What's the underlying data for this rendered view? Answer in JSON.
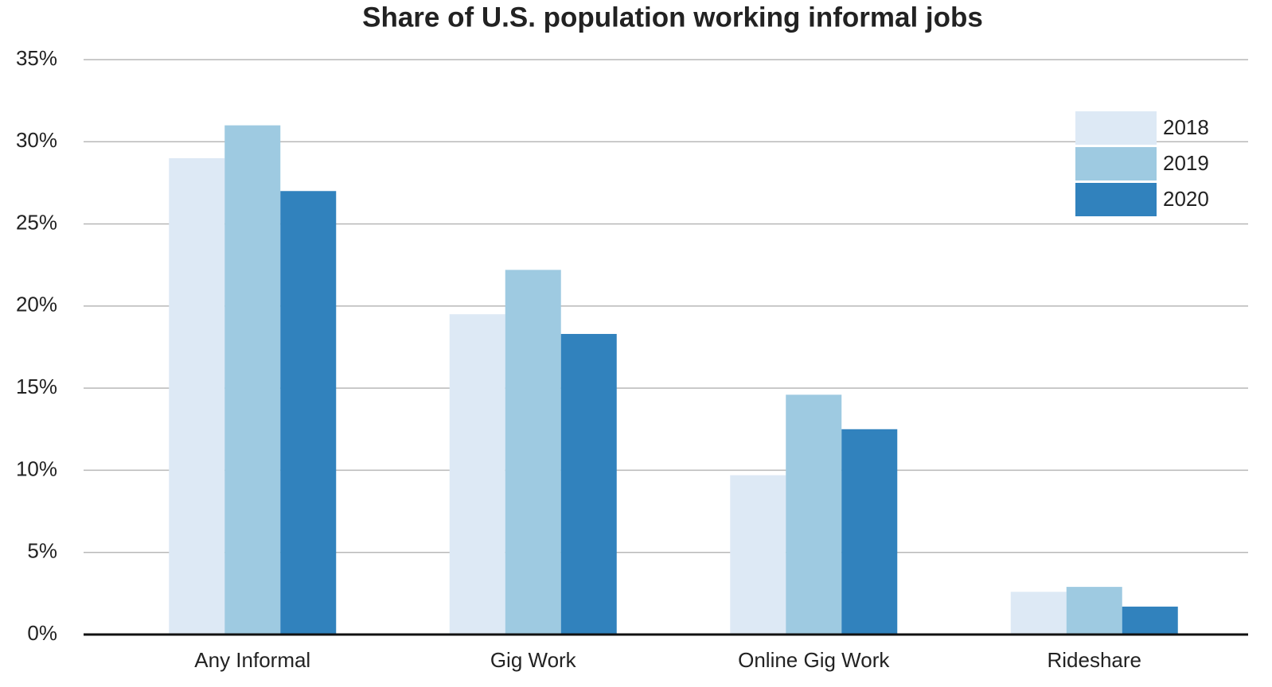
{
  "chart_data": {
    "type": "bar",
    "title": "Share of U.S. population working informal jobs",
    "categories": [
      "Any Informal",
      "Gig Work",
      "Online Gig Work",
      "Rideshare"
    ],
    "series": [
      {
        "name": "2018",
        "color": "#dde9f5",
        "values": [
          29,
          19.5,
          9.7,
          2.6
        ]
      },
      {
        "name": "2019",
        "color": "#9ecae1",
        "values": [
          31,
          22.2,
          14.6,
          2.9
        ]
      },
      {
        "name": "2020",
        "color": "#3182bd",
        "values": [
          27,
          18.3,
          12.5,
          1.7
        ]
      }
    ],
    "ylim": [
      0,
      35
    ],
    "yticks": [
      {
        "value": 0,
        "label": "0%"
      },
      {
        "value": 5,
        "label": "5%"
      },
      {
        "value": 10,
        "label": "10%"
      },
      {
        "value": 15,
        "label": "15%"
      },
      {
        "value": 20,
        "label": "20%"
      },
      {
        "value": 25,
        "label": "25%"
      },
      {
        "value": 30,
        "label": "30%"
      },
      {
        "value": 35,
        "label": "35%"
      }
    ],
    "grid": true,
    "legend": "top-right"
  }
}
